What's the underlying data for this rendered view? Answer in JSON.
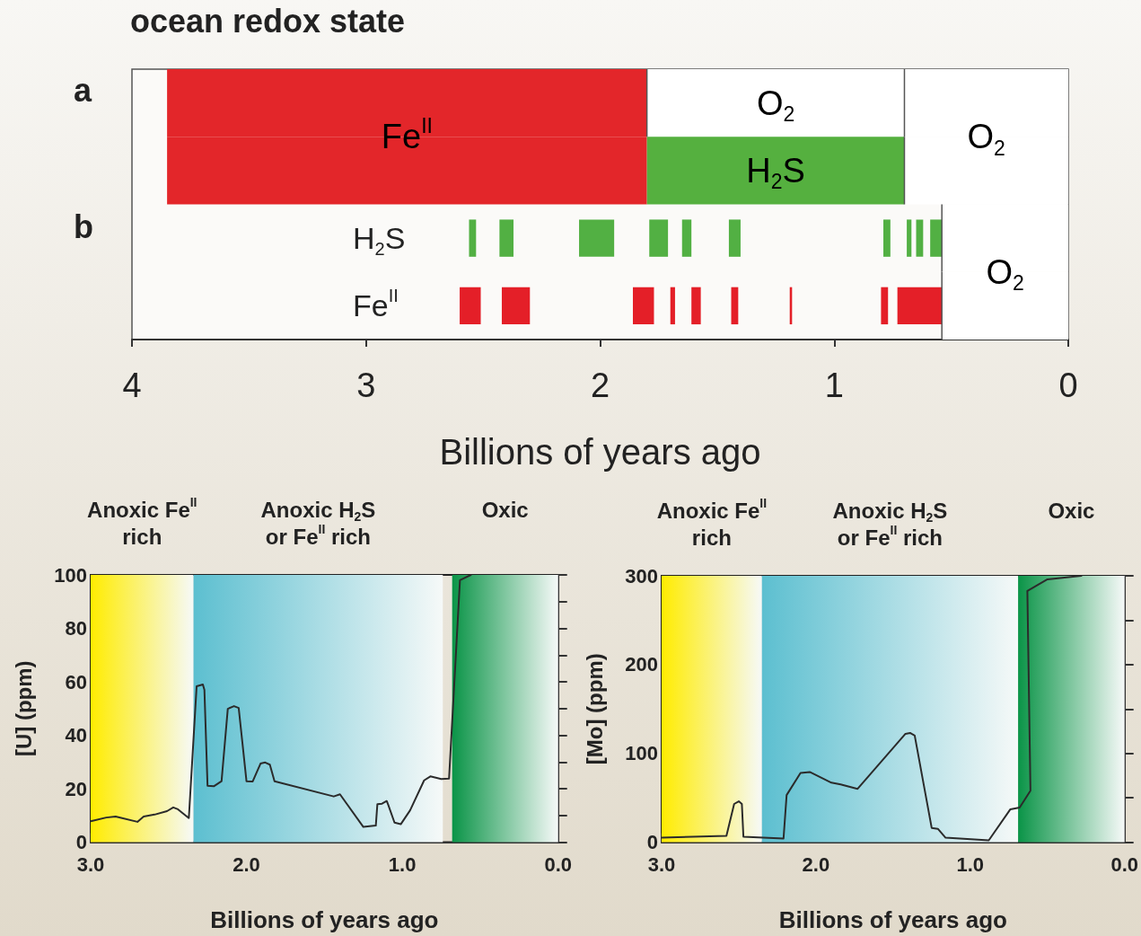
{
  "chart_data": [
    {
      "type": "bar",
      "orientation": "horizontal",
      "title": "ocean redox state",
      "annotations": [
        "a",
        "b"
      ],
      "categories": [
        null,
        null,
        "H$_{2}$S",
        "Fe$^{II}$"
      ],
      "xlabel": "Billions of years ago",
      "xlim": [
        4,
        0
      ],
      "xticks": [
        4,
        3,
        2,
        1,
        0
      ],
      "series": [
        {
          "name": "Fe$^{II}$",
          "color": "#e3262a",
          "base": [
            1.8,
            1.8,
            null,
            null
          ],
          "values": [
            2.05,
            2.05,
            null,
            null
          ]
        },
        {
          "name": "O$_{2}$",
          "color": "#ffffff",
          "base": [
            0.7,
            null,
            null,
            null
          ],
          "values": [
            1.1,
            null,
            null,
            null
          ]
        },
        {
          "name": "H$_{2}$S",
          "color": "#55b03f",
          "base": [
            null,
            0.7,
            null,
            null
          ],
          "values": [
            null,
            1.1,
            null,
            null
          ]
        },
        {
          "name": "O$_{2}$",
          "color": "#ffffff",
          "base": [
            0,
            0,
            null,
            null
          ],
          "values": [
            0.7,
            0.7,
            null,
            null
          ]
        },
        {
          "colors": [
            null,
            null,
            "#52b043",
            "#e41f28"
          ],
          "base": [
            null,
            null,
            2.53,
            2.51
          ],
          "values": [
            null,
            null,
            0.03,
            0.09
          ]
        },
        {
          "colors": [
            null,
            null,
            "#52b043",
            "#e41f28"
          ],
          "base": [
            null,
            null,
            2.37,
            2.3
          ],
          "values": [
            null,
            null,
            0.06,
            0.12
          ]
        },
        {
          "colors": [
            null,
            null,
            "#52b043",
            "#e41f28"
          ],
          "base": [
            null,
            null,
            1.94,
            1.77
          ],
          "values": [
            null,
            null,
            0.15,
            0.09
          ]
        },
        {
          "colors": [
            null,
            null,
            "#52b043",
            "#e41f28"
          ],
          "base": [
            null,
            null,
            1.71,
            1.68
          ],
          "values": [
            null,
            null,
            0.08,
            0.02
          ]
        },
        {
          "colors": [
            null,
            null,
            "#52b043",
            "#e41f28"
          ],
          "base": [
            null,
            null,
            1.61,
            1.57
          ],
          "values": [
            null,
            null,
            0.04,
            0.04
          ]
        },
        {
          "colors": [
            null,
            null,
            "#52b043",
            "#e41f28"
          ],
          "base": [
            null,
            null,
            1.4,
            1.41
          ],
          "values": [
            null,
            null,
            0.05,
            0.03
          ]
        },
        {
          "colors": [
            null,
            null,
            "#52b043",
            "#e41f28"
          ],
          "base": [
            null,
            null,
            0.76,
            1.18
          ],
          "values": [
            null,
            null,
            0.03,
            0.01
          ]
        },
        {
          "colors": [
            null,
            null,
            "#52b043",
            "#e41f28"
          ],
          "base": [
            null,
            null,
            0.67,
            0.77
          ],
          "values": [
            null,
            null,
            0.02,
            0.03
          ]
        },
        {
          "colors": [
            null,
            null,
            "#52b043",
            "#e41f28"
          ],
          "base": [
            null,
            null,
            0.62,
            0.54
          ],
          "values": [
            null,
            null,
            0.03,
            0.19
          ]
        },
        {
          "color": "#52b043",
          "base": [
            null,
            null,
            0.54,
            null
          ],
          "values": [
            null,
            null,
            0.05,
            null
          ]
        },
        {
          "name": "O$_{2}$",
          "color": "#ffffff",
          "base": [
            null,
            null,
            0,
            0
          ],
          "values": [
            null,
            null,
            0.54,
            0.54
          ]
        }
      ]
    },
    {
      "type": "line",
      "xlabel": "Billions of years ago",
      "ylabel": "[U] (ppm)",
      "marker": "none",
      "xlim": [
        3,
        0
      ],
      "xticks": [
        {
          "value": 3,
          "label": "3.0"
        },
        {
          "value": 2.5,
          "label": null
        },
        {
          "value": 2,
          "label": "2.0"
        },
        {
          "value": 1.5,
          "label": null
        },
        {
          "value": 1,
          "label": "1.0"
        },
        {
          "value": 0.5,
          "label": null
        },
        {
          "value": 0,
          "label": "0.0"
        }
      ],
      "ylim": [
        0,
        100
      ],
      "yticks": [
        0,
        {
          "value": 10,
          "label": null
        },
        20,
        {
          "value": 30,
          "label": null
        },
        40,
        {
          "value": 50,
          "label": null
        },
        60,
        {
          "value": 70,
          "label": null
        },
        80,
        {
          "value": 90,
          "label": null
        },
        100
      ],
      "bands": [
        {
          "axis": "x",
          "from": 3,
          "to": 2.34,
          "label": "Anoxic Fe$^{II}$\nrich",
          "color": "#ffec00"
        },
        {
          "axis": "x",
          "from": 2.34,
          "to": 0.74,
          "label": "Anoxic H$_{2}$S\nor Fe$^{II}$ rich",
          "color": "#5cbfd0"
        },
        {
          "axis": "x",
          "from": 0.68,
          "to": 0,
          "label": "Oxic",
          "color": "#0a9447"
        }
      ],
      "series": [
        {
          "color": "#2b2b2b",
          "x": [
            3.0,
            2.9,
            2.84,
            2.7,
            2.66,
            2.59,
            2.51,
            2.47,
            2.44,
            2.37,
            2.32,
            2.28,
            2.27,
            2.25,
            2.21,
            2.16,
            2.12,
            2.08,
            2.05,
            2.0,
            1.96,
            1.91,
            1.88,
            1.85,
            1.82,
            1.44,
            1.4,
            1.25,
            1.17,
            1.16,
            1.13,
            1.1,
            1.09,
            1.05,
            1.01,
            0.95,
            0.86,
            0.82,
            0.75,
            0.7,
            0.63,
            0.56
          ],
          "values": [
            7.8,
            9.2,
            9.6,
            7.6,
            9.6,
            10.3,
            11.6,
            13.0,
            12.3,
            9.0,
            58.3,
            59.0,
            57.0,
            21.1,
            20.9,
            22.8,
            49.9,
            50.9,
            50.2,
            22.8,
            22.7,
            29.4,
            29.8,
            29.0,
            22.8,
            17.1,
            17.9,
            5.7,
            6.2,
            14.2,
            14.4,
            15.4,
            13.9,
            7.3,
            6.7,
            11.9,
            23.1,
            24.6,
            23.6,
            23.8,
            98.0,
            100
          ]
        }
      ]
    },
    {
      "type": "line",
      "xlabel": "Billions of years ago",
      "ylabel": "[Mo] (ppm)",
      "marker": "none",
      "xlim": [
        3,
        0
      ],
      "xticks": [
        {
          "value": 3,
          "label": "3.0"
        },
        {
          "value": 2.5,
          "label": null
        },
        {
          "value": 2,
          "label": "2.0"
        },
        {
          "value": 1.5,
          "label": null
        },
        {
          "value": 1,
          "label": "1.0"
        },
        {
          "value": 0.5,
          "label": null
        },
        {
          "value": 0,
          "label": "0.0"
        }
      ],
      "ylim": [
        0,
        300
      ],
      "yticks": [
        0,
        {
          "value": 50,
          "label": null
        },
        100,
        {
          "value": 150,
          "label": null
        },
        200,
        {
          "value": 250,
          "label": null
        },
        300
      ],
      "bands": [
        {
          "axis": "x",
          "from": 3,
          "to": 2.35,
          "label": "Anoxic Fe$^{II}$\nrich",
          "color": "#ffec00"
        },
        {
          "axis": "x",
          "from": 2.35,
          "to": 0.69,
          "label": "Anoxic H$_{2}$S\nor Fe$^{II}$ rich",
          "color": "#5cbfd0"
        },
        {
          "axis": "x",
          "from": 0.69,
          "to": 0,
          "label": "Oxic",
          "color": "#0a9447"
        }
      ],
      "series": [
        {
          "color": "#2b2b2b",
          "x": [
            3.0,
            2.58,
            2.53,
            2.5,
            2.48,
            2.47,
            2.21,
            2.19,
            2.1,
            2.04,
            1.9,
            1.84,
            1.73,
            1.42,
            1.39,
            1.36,
            1.25,
            1.21,
            1.16,
            0.88,
            0.74,
            0.68,
            0.61,
            0.63,
            0.5,
            0.28
          ],
          "values": [
            5,
            7,
            43,
            46,
            43,
            6,
            4,
            53,
            78,
            79,
            67,
            65,
            60,
            122,
            123,
            120,
            16,
            15,
            5,
            2,
            37,
            39,
            58,
            283,
            296,
            300
          ]
        }
      ]
    }
  ]
}
